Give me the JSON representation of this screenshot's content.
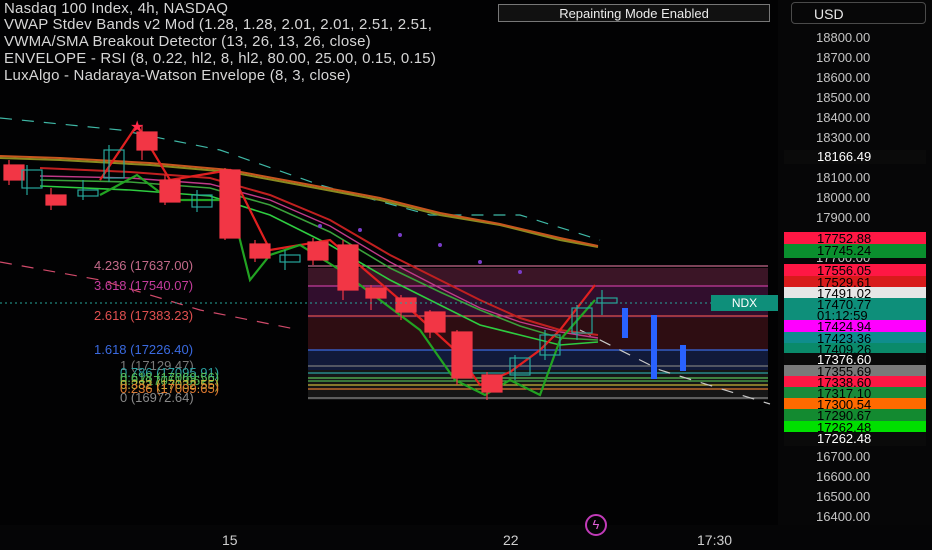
{
  "header": {
    "lines": [
      "Nasdaq 100 Index, 4h, NASDAQ",
      "VWAP Stdev Bands v2 Mod (1.28, 1.28, 2.01, 2.01, 2.51, 2.51,",
      "VWMA/SMA Breakout Detector (13, 26, 13, 26, close)",
      "ENVELOPE - RSI (8, 0.22, hl2, 8, hl2, 80.00, 25.00, 0.15, 0.15)",
      "LuxAlgo - Nadaraya-Watson Envelope (8, 3, close)"
    ],
    "repaint_label": "Repainting Mode Enabled",
    "currency": "USD"
  },
  "y_axis": {
    "ticks": [
      {
        "label": "18800.00",
        "v": 18800
      },
      {
        "label": "18700.00",
        "v": 18700
      },
      {
        "label": "18600.00",
        "v": 18600
      },
      {
        "label": "18500.00",
        "v": 18500
      },
      {
        "label": "18400.00",
        "v": 18400
      },
      {
        "label": "18300.00",
        "v": 18300
      },
      {
        "label": "18100.00",
        "v": 18100
      },
      {
        "label": "18000.00",
        "v": 18000
      },
      {
        "label": "17900.00",
        "v": 17900
      },
      {
        "label": "17700.00",
        "v": 17700
      },
      {
        "label": "16700.00",
        "v": 16700
      },
      {
        "label": "16600.00",
        "v": 16600
      },
      {
        "label": "16500.00",
        "v": 16500
      },
      {
        "label": "16400.00",
        "v": 16400
      }
    ],
    "price_labels": [
      {
        "text": "18166.49",
        "bg": "#0a0a0a",
        "fg": "#ffffff",
        "v": 18166.49
      },
      {
        "text": "17752.88",
        "bg": "#ff1744",
        "fg": "#000000",
        "v": 17752.88
      },
      {
        "text": "17745.24",
        "bg": "#0a8f2e",
        "fg": "#000000",
        "v": 17745.24
      },
      {
        "text": "17556.05",
        "bg": "#ff1744",
        "fg": "#000000",
        "v": 17556.05
      },
      {
        "text": "17529.61",
        "bg": "#d81b1b",
        "fg": "#000000",
        "v": 17529.61
      },
      {
        "text": "17491.02",
        "bg": "#e6e6e6",
        "fg": "#000000",
        "v": 17491.02
      },
      {
        "text": "17470.77",
        "bg": "#0e8f7a",
        "fg": "#000000",
        "v": 17470.77
      },
      {
        "text": "01:12:59",
        "bg": "#0e8f7a",
        "fg": "#000000",
        "v": 17450
      },
      {
        "text": "17424.94",
        "bg": "#ff00ff",
        "fg": "#000000",
        "v": 17424.94
      },
      {
        "text": "17423.36",
        "bg": "#0f8d8d",
        "fg": "#000000",
        "v": 17423.36
      },
      {
        "text": "17409.26",
        "bg": "#0a8a6a",
        "fg": "#000000",
        "v": 17409.26
      },
      {
        "text": "17376.60",
        "bg": "#0a0a0a",
        "fg": "#ffffff",
        "v": 17376.6
      },
      {
        "text": "17355.69",
        "bg": "#7a7a7a",
        "fg": "#000000",
        "v": 17355.69
      },
      {
        "text": "17338.60",
        "bg": "#ff1744",
        "fg": "#000000",
        "v": 17338.6
      },
      {
        "text": "17317.10",
        "bg": "#1a8a3a",
        "fg": "#000000",
        "v": 17317.1
      },
      {
        "text": "17300.54",
        "bg": "#ff6a00",
        "fg": "#000000",
        "v": 17300.54
      },
      {
        "text": "17290.67",
        "bg": "#138a30",
        "fg": "#000000",
        "v": 17290.67
      },
      {
        "text": "17262.48",
        "bg": "#00e000",
        "fg": "#000000",
        "v": 17262.48
      },
      {
        "text": "17262.48",
        "bg": "#0a0a0a",
        "fg": "#ffffff",
        "v": 17240
      }
    ]
  },
  "x_axis": {
    "ticks": [
      {
        "label": "15",
        "x": 230
      },
      {
        "label": "22",
        "x": 511
      },
      {
        "label": "17:30",
        "x": 705
      }
    ]
  },
  "symbol_tag": "NDX",
  "fib_levels": [
    {
      "label": "4.236 (17637.00)",
      "color": "#c46a8a",
      "v": 17637.0
    },
    {
      "label": "3.618 (17540.07)",
      "color": "#c43c9c",
      "v": 17540.07
    },
    {
      "label": "2.618 (17383.23)",
      "color": "#e05050",
      "v": 17383.23
    },
    {
      "label": "1.618 (17226.40)",
      "color": "#3a6ae0",
      "v": 17226.4
    },
    {
      "label": "1 (17129.47)",
      "color": "#7a7a7a",
      "v": 17129.47
    },
    {
      "label": "0.786 (17095.91)",
      "color": "#2aa0a0",
      "v": 17095.91
    },
    {
      "label": "0.618 (17069.56)",
      "color": "#5ac05a",
      "v": 17069.56
    },
    {
      "label": "0.5 (17051.06)",
      "color": "#4caf50",
      "v": 17051.06
    },
    {
      "label": "0.382 (17032.55)",
      "color": "#c8b43a",
      "v": 17032.55
    },
    {
      "label": "0.236 (17009.65)",
      "color": "#e07a30",
      "v": 17009.65
    },
    {
      "label": "0 (16972.64)",
      "color": "#8a8a8a",
      "v": 16972.64
    }
  ],
  "colors": {
    "up": "#26a69a",
    "down": "#f23645",
    "background": "#020203"
  }
}
